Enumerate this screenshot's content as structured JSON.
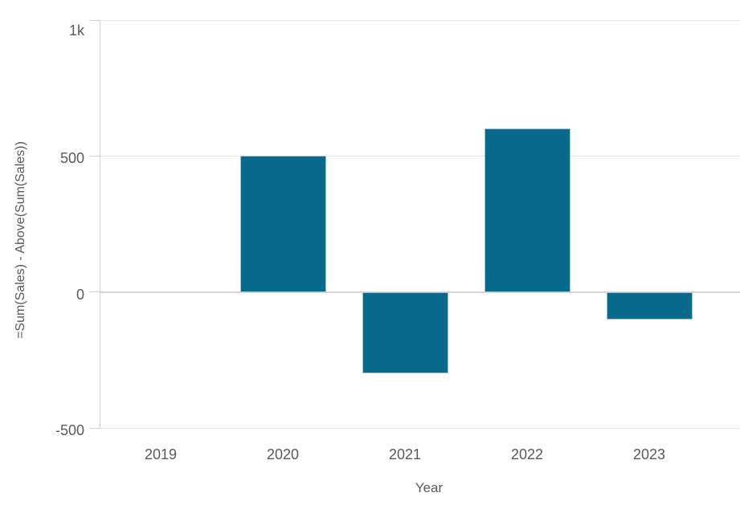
{
  "chart_data": {
    "type": "bar",
    "title": "",
    "categories": [
      "2019",
      "2020",
      "2021",
      "2022",
      "2023"
    ],
    "values": [
      0,
      500,
      -300,
      600,
      -100
    ],
    "xlabel": "Year",
    "ylabel": "=Sum(Sales) - Above(Sum(Sales))",
    "ylim": [
      -500,
      1000
    ],
    "yticks": [
      {
        "value": 1000,
        "label": "1k"
      },
      {
        "value": 500,
        "label": "500"
      },
      {
        "value": 0,
        "label": "0"
      },
      {
        "value": -500,
        "label": "-500"
      }
    ],
    "grid": true,
    "legend_position": "none",
    "colors": {
      "bar_fill": "#09698a",
      "bar_border": "#9fc3d2",
      "gridline": "#e7e7e7",
      "zero_line": "#d6d6d6",
      "axis_line": "#d0d0d0",
      "text": "#595959",
      "background": "#ffffff"
    }
  }
}
